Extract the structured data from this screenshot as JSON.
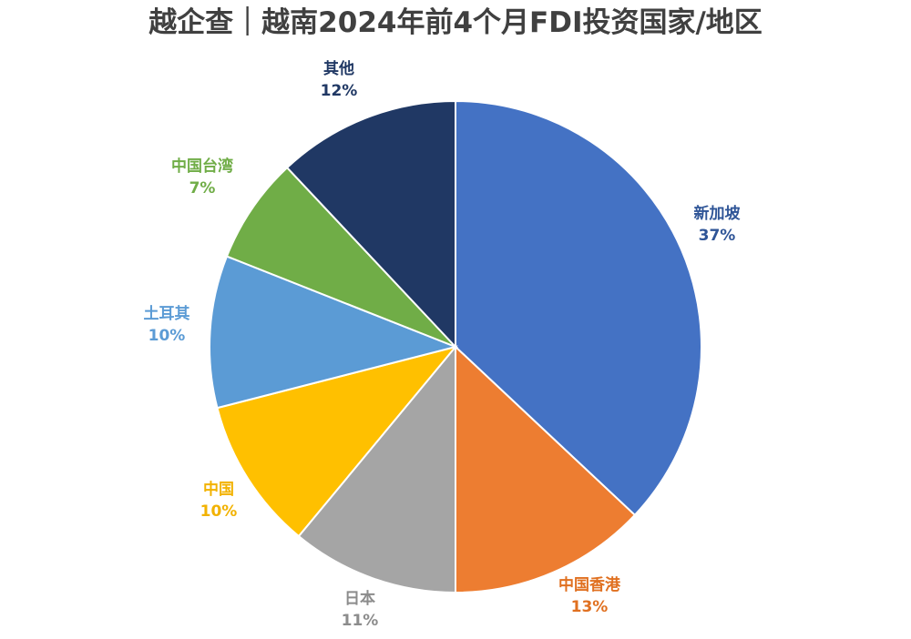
{
  "chart_data": {
    "type": "pie",
    "title": "越企查｜越南2024年前4个月FDI投资国家/地区",
    "slices": [
      {
        "label": "新加坡",
        "value": 37,
        "value_label": "37%",
        "color": "#4472C4",
        "label_color": "#2F5597"
      },
      {
        "label": "中国香港",
        "value": 13,
        "value_label": "13%",
        "color": "#ED7D31",
        "label_color": "#E07020"
      },
      {
        "label": "日本",
        "value": 11,
        "value_label": "11%",
        "color": "#A5A5A5",
        "label_color": "#8C8C8C"
      },
      {
        "label": "中国",
        "value": 10,
        "value_label": "10%",
        "color": "#FFC000",
        "label_color": "#F2B200"
      },
      {
        "label": "土耳其",
        "value": 10,
        "value_label": "10%",
        "color": "#5B9BD5",
        "label_color": "#5B9BD5"
      },
      {
        "label": "中国台湾",
        "value": 7,
        "value_label": "7%",
        "color": "#70AD47",
        "label_color": "#70AD47"
      },
      {
        "label": "其他",
        "value": 12,
        "value_label": "12%",
        "color": "#203864",
        "label_color": "#203864"
      }
    ],
    "legend": "none"
  }
}
